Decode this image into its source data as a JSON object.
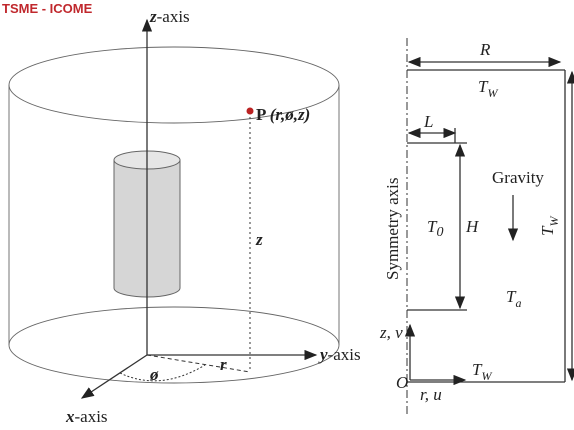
{
  "header": {
    "title": "TSME - ICOME"
  },
  "left": {
    "z_axis": "z",
    "z_axis_suffix": "-axis",
    "point": "P",
    "point_coords": "(r,ø,z)",
    "z_label": "z",
    "r_label": "r",
    "phi_label": "ø",
    "y_axis": "y",
    "y_axis_suffix": "-axis",
    "x_axis": "x",
    "x_axis_suffix": "-axis"
  },
  "right": {
    "R": "R",
    "L": "L",
    "symmetry_axis": "Symmetry axis",
    "gravity": "Gravity",
    "T0": {
      "main": "T",
      "sub": "0"
    },
    "H": "H",
    "T_top": {
      "main": "T",
      "sub": "W"
    },
    "T_right": {
      "main": "T",
      "sub": "W"
    },
    "T_a": {
      "main": "T",
      "sub": "a"
    },
    "z_v": "z, v",
    "origin": "O",
    "T_bottom": {
      "main": "T",
      "sub": "W"
    },
    "r_u": "r, u"
  }
}
